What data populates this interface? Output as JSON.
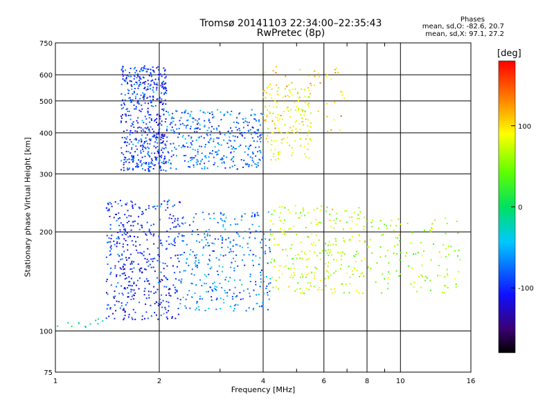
{
  "header": {
    "title_line1": "Tromsø 20141103 22:34:00–22:35:43",
    "title_line2": "RwPretec (8p)",
    "stats_heading": "Phases",
    "stats_o": "mean, sd,O: -82.6, 20.7",
    "stats_x": "mean, sd,X:  97.1, 27.2"
  },
  "colorbar": {
    "unit": "[deg]",
    "ticks": [
      100,
      0,
      -100
    ],
    "range": [
      -180,
      180
    ]
  },
  "colors": {
    "grid": "#000000",
    "background": "#ffffff"
  },
  "chart_data": {
    "type": "scatter",
    "title": "Tromsø 20141103 22:34:00–22:35:43",
    "subtitle": "RwPretec (8p)",
    "xlabel": "Frequency [MHz]",
    "ylabel": "Stationary phase Virtual Height [km]",
    "x_scale": "log",
    "y_scale": "log",
    "xlim": [
      1,
      16
    ],
    "ylim": [
      75,
      750
    ],
    "x_ticks": [
      1,
      2,
      4,
      6,
      8,
      10,
      16
    ],
    "y_ticks": [
      75,
      100,
      200,
      300,
      400,
      500,
      600,
      750
    ],
    "grid": true,
    "color_encoding": "phase [deg]",
    "regions": [
      {
        "x_range": [
          1.55,
          2.1
        ],
        "y_range": [
          305,
          640
        ],
        "phase_mean": -95,
        "count": 520
      },
      {
        "x_range": [
          2.1,
          4.0
        ],
        "y_range": [
          310,
          470
        ],
        "phase_mean": -75,
        "count": 360
      },
      {
        "x_range": [
          4.0,
          5.5
        ],
        "y_range": [
          330,
          560
        ],
        "phase_mean": 90,
        "count": 140
      },
      {
        "x_range": [
          4.0,
          7.0
        ],
        "y_range": [
          400,
          640
        ],
        "phase_mean": 110,
        "count": 60
      },
      {
        "x_range": [
          1.4,
          2.3
        ],
        "y_range": [
          108,
          250
        ],
        "phase_mean": -100,
        "count": 450
      },
      {
        "x_range": [
          2.3,
          4.2
        ],
        "y_range": [
          115,
          230
        ],
        "phase_mean": -70,
        "count": 330
      },
      {
        "x_range": [
          4.2,
          8.0
        ],
        "y_range": [
          130,
          240
        ],
        "phase_mean": 70,
        "count": 260
      },
      {
        "x_range": [
          8.0,
          15.0
        ],
        "y_range": [
          130,
          220
        ],
        "phase_mean": 60,
        "count": 120
      },
      {
        "x_range": [
          1.0,
          1.4
        ],
        "y_range": [
          100,
          110
        ],
        "phase_mean": -20,
        "count": 12
      }
    ]
  }
}
